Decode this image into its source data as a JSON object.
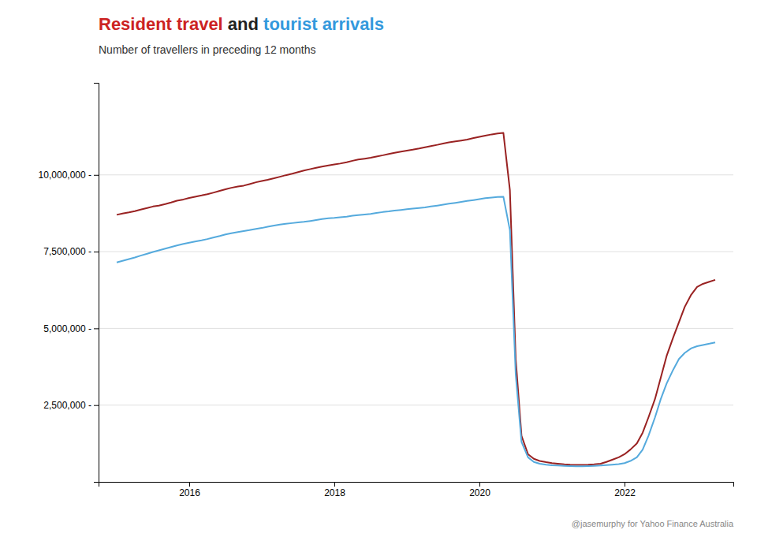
{
  "chart_data": {
    "type": "line",
    "title": [
      {
        "text": "Resident travel",
        "color": "#cc2222"
      },
      {
        "text": " and ",
        "color": "#222222"
      },
      {
        "text": "tourist arrivals",
        "color": "#3399dd"
      }
    ],
    "subtitle": "Number of travellers in preceding 12 months",
    "annotation": "@jasemurphy for Yahoo Finance Australia",
    "xlim": [
      2014.75,
      2023.5
    ],
    "xticks": [
      2016,
      2018,
      2020,
      2022
    ],
    "ylim": [
      0,
      13000000
    ],
    "yticks": [
      {
        "value": 2500000,
        "label": "2,500,000 -"
      },
      {
        "value": 5000000,
        "label": "5,000,000 -"
      },
      {
        "value": 7500000,
        "label": "7,500,000 -"
      },
      {
        "value": 10000000,
        "label": "10,000,000 -"
      }
    ],
    "grid": true,
    "x": [
      2015.0,
      2015.08,
      2015.17,
      2015.25,
      2015.33,
      2015.42,
      2015.5,
      2015.58,
      2015.67,
      2015.75,
      2015.83,
      2015.92,
      2016.0,
      2016.08,
      2016.17,
      2016.25,
      2016.33,
      2016.42,
      2016.5,
      2016.58,
      2016.67,
      2016.75,
      2016.83,
      2016.92,
      2017.0,
      2017.08,
      2017.17,
      2017.25,
      2017.33,
      2017.42,
      2017.5,
      2017.58,
      2017.67,
      2017.75,
      2017.83,
      2017.92,
      2018.0,
      2018.08,
      2018.17,
      2018.25,
      2018.33,
      2018.42,
      2018.5,
      2018.58,
      2018.67,
      2018.75,
      2018.83,
      2018.92,
      2019.0,
      2019.08,
      2019.17,
      2019.25,
      2019.33,
      2019.42,
      2019.5,
      2019.58,
      2019.67,
      2019.75,
      2019.83,
      2019.92,
      2020.0,
      2020.08,
      2020.17,
      2020.25,
      2020.33,
      2020.42,
      2020.5,
      2020.58,
      2020.67,
      2020.75,
      2020.83,
      2020.92,
      2021.0,
      2021.08,
      2021.17,
      2021.25,
      2021.33,
      2021.42,
      2021.5,
      2021.58,
      2021.67,
      2021.75,
      2021.83,
      2021.92,
      2022.0,
      2022.08,
      2022.17,
      2022.25,
      2022.33,
      2022.42,
      2022.5,
      2022.58,
      2022.67,
      2022.75,
      2022.83,
      2022.92,
      2023.0,
      2023.08,
      2023.17,
      2023.25
    ],
    "series": [
      {
        "color": "#992222",
        "values": [
          8700000,
          8740000,
          8780000,
          8820000,
          8870000,
          8920000,
          8970000,
          9000000,
          9050000,
          9100000,
          9160000,
          9200000,
          9250000,
          9290000,
          9330000,
          9370000,
          9420000,
          9480000,
          9530000,
          9580000,
          9620000,
          9650000,
          9700000,
          9760000,
          9800000,
          9840000,
          9890000,
          9940000,
          9990000,
          10040000,
          10090000,
          10140000,
          10190000,
          10230000,
          10270000,
          10310000,
          10340000,
          10370000,
          10410000,
          10460000,
          10500000,
          10530000,
          10560000,
          10600000,
          10640000,
          10680000,
          10720000,
          10760000,
          10790000,
          10820000,
          10860000,
          10900000,
          10940000,
          10980000,
          11020000,
          11060000,
          11090000,
          11120000,
          11150000,
          11200000,
          11240000,
          11280000,
          11320000,
          11350000,
          11370000,
          9500000,
          4000000,
          1500000,
          900000,
          750000,
          680000,
          640000,
          610000,
          590000,
          570000,
          560000,
          555000,
          555000,
          560000,
          570000,
          590000,
          650000,
          720000,
          800000,
          900000,
          1050000,
          1250000,
          1600000,
          2100000,
          2700000,
          3400000,
          4100000,
          4700000,
          5200000,
          5700000,
          6100000,
          6350000,
          6450000,
          6520000,
          6580000
        ]
      },
      {
        "color": "#55aadd",
        "values": [
          7150000,
          7200000,
          7260000,
          7310000,
          7370000,
          7430000,
          7490000,
          7540000,
          7600000,
          7650000,
          7700000,
          7750000,
          7790000,
          7830000,
          7870000,
          7910000,
          7960000,
          8010000,
          8060000,
          8100000,
          8140000,
          8170000,
          8200000,
          8240000,
          8270000,
          8310000,
          8350000,
          8380000,
          8410000,
          8430000,
          8450000,
          8470000,
          8500000,
          8530000,
          8560000,
          8590000,
          8600000,
          8620000,
          8640000,
          8670000,
          8690000,
          8710000,
          8730000,
          8760000,
          8790000,
          8810000,
          8840000,
          8860000,
          8880000,
          8900000,
          8920000,
          8940000,
          8970000,
          9000000,
          9030000,
          9060000,
          9090000,
          9120000,
          9150000,
          9180000,
          9210000,
          9240000,
          9260000,
          9280000,
          9290000,
          8200000,
          3500000,
          1300000,
          800000,
          650000,
          590000,
          560000,
          540000,
          530000,
          520000,
          515000,
          510000,
          510000,
          515000,
          520000,
          530000,
          545000,
          560000,
          580000,
          610000,
          680000,
          800000,
          1050000,
          1500000,
          2100000,
          2700000,
          3200000,
          3650000,
          4000000,
          4200000,
          4350000,
          4420000,
          4460000,
          4500000,
          4540000
        ]
      }
    ]
  }
}
